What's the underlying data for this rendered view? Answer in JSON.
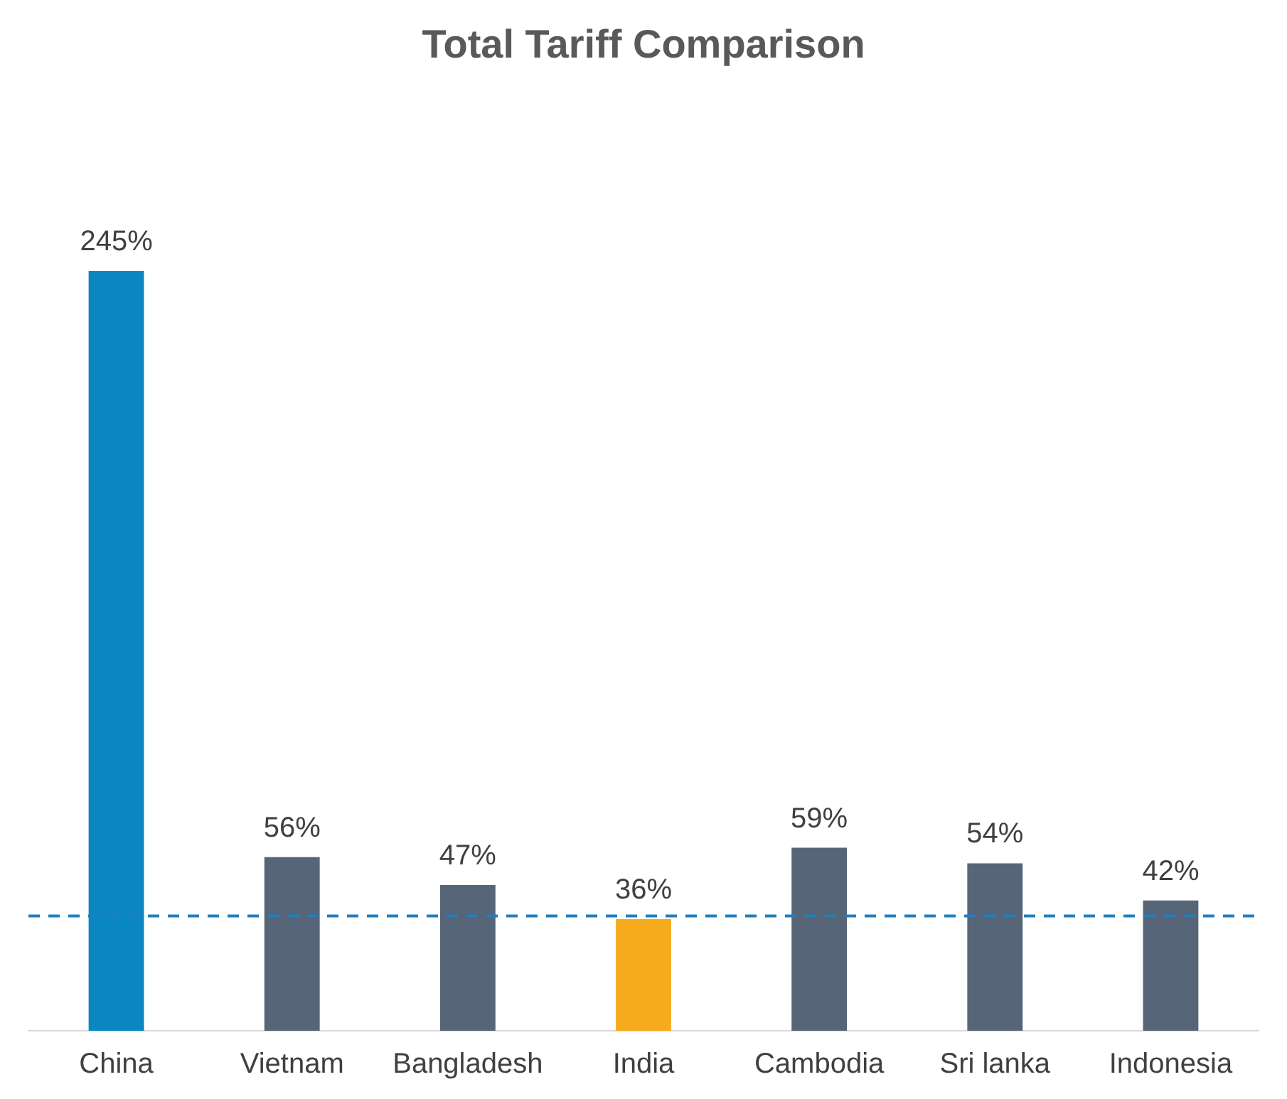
{
  "chart_data": {
    "type": "bar",
    "title": "Total Tariff Comparison",
    "categories": [
      "China",
      "Vietnam",
      "Bangladesh",
      "India",
      "Cambodia",
      "Sri lanka",
      "Indonesia"
    ],
    "values": [
      245,
      56,
      47,
      36,
      59,
      54,
      42
    ],
    "colors": [
      "#0a87c0",
      "#566577",
      "#566577",
      "#f5ab1c",
      "#566577",
      "#566577",
      "#566577"
    ],
    "value_labels": [
      "245%",
      "56%",
      "47%",
      "36%",
      "59%",
      "54%",
      "42%"
    ],
    "ref_lines": [
      {
        "axis": "y",
        "value": 37,
        "color": "#1f7fc0",
        "line_style": "dashed"
      }
    ],
    "grid": false,
    "legend": false
  }
}
